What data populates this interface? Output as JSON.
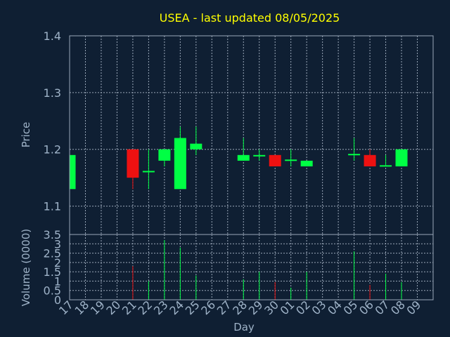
{
  "chart_data": {
    "type": "candlestick",
    "title": "USEA - last updated 08/05/2025",
    "xlabel": "Day",
    "price_panel": {
      "ylabel": "Price",
      "ylim": [
        1.05,
        1.4
      ],
      "yticks": [
        "1.1",
        "1.2",
        "1.3",
        "1.4"
      ],
      "grid": true
    },
    "volume_panel": {
      "ylabel": "Volume (0000)",
      "ylim": [
        0,
        3.5
      ],
      "yticks": [
        "0",
        "0.5",
        "1",
        "1.5",
        "2",
        "2.5",
        "3",
        "3.5"
      ],
      "grid": true
    },
    "categories": [
      "17",
      "18",
      "19",
      "20",
      "21",
      "22",
      "23",
      "24",
      "25",
      "26",
      "27",
      "28",
      "29",
      "30",
      "01",
      "02",
      "03",
      "04",
      "05",
      "06",
      "07",
      "08",
      "09"
    ],
    "candles": [
      {
        "day": "17",
        "open": 1.13,
        "high": 1.19,
        "low": 1.13,
        "close": 1.19,
        "volume": 0
      },
      {
        "day": "21",
        "open": 1.2,
        "high": 1.2,
        "low": 1.13,
        "close": 1.15,
        "volume": 1.8
      },
      {
        "day": "22",
        "open": 1.16,
        "high": 1.2,
        "low": 1.13,
        "close": 1.162,
        "volume": 1.0
      },
      {
        "day": "23",
        "open": 1.18,
        "high": 1.2,
        "low": 1.17,
        "close": 1.2,
        "volume": 3.2
      },
      {
        "day": "24",
        "open": 1.13,
        "high": 1.24,
        "low": 1.13,
        "close": 1.22,
        "volume": 2.8
      },
      {
        "day": "25",
        "open": 1.2,
        "high": 1.24,
        "low": 1.19,
        "close": 1.21,
        "volume": 1.3
      },
      {
        "day": "28",
        "open": 1.18,
        "high": 1.22,
        "low": 1.18,
        "close": 1.19,
        "volume": 1.1
      },
      {
        "day": "29",
        "open": 1.19,
        "high": 1.2,
        "low": 1.18,
        "close": 1.19,
        "volume": 1.5
      },
      {
        "day": "30",
        "open": 1.19,
        "high": 1.19,
        "low": 1.17,
        "close": 1.17,
        "volume": 0.95
      },
      {
        "day": "01",
        "open": 1.18,
        "high": 1.2,
        "low": 1.17,
        "close": 1.182,
        "volume": 0.65
      },
      {
        "day": "02",
        "open": 1.17,
        "high": 1.18,
        "low": 1.17,
        "close": 1.18,
        "volume": 1.5
      },
      {
        "day": "05",
        "open": 1.19,
        "high": 1.22,
        "low": 1.18,
        "close": 1.192,
        "volume": 2.6
      },
      {
        "day": "06",
        "open": 1.19,
        "high": 1.2,
        "low": 1.17,
        "close": 1.17,
        "volume": 0.8
      },
      {
        "day": "07",
        "open": 1.17,
        "high": 1.19,
        "low": 1.17,
        "close": 1.172,
        "volume": 1.4
      },
      {
        "day": "08",
        "open": 1.17,
        "high": 1.2,
        "low": 1.17,
        "close": 1.2,
        "volume": 0.95
      }
    ],
    "colors": {
      "background": "#0f1f33",
      "title": "#ffff00",
      "axis_text": "#9fb3c8",
      "grid": "#9aa7b8",
      "up": "#00ff44",
      "down": "#ee1111"
    }
  }
}
